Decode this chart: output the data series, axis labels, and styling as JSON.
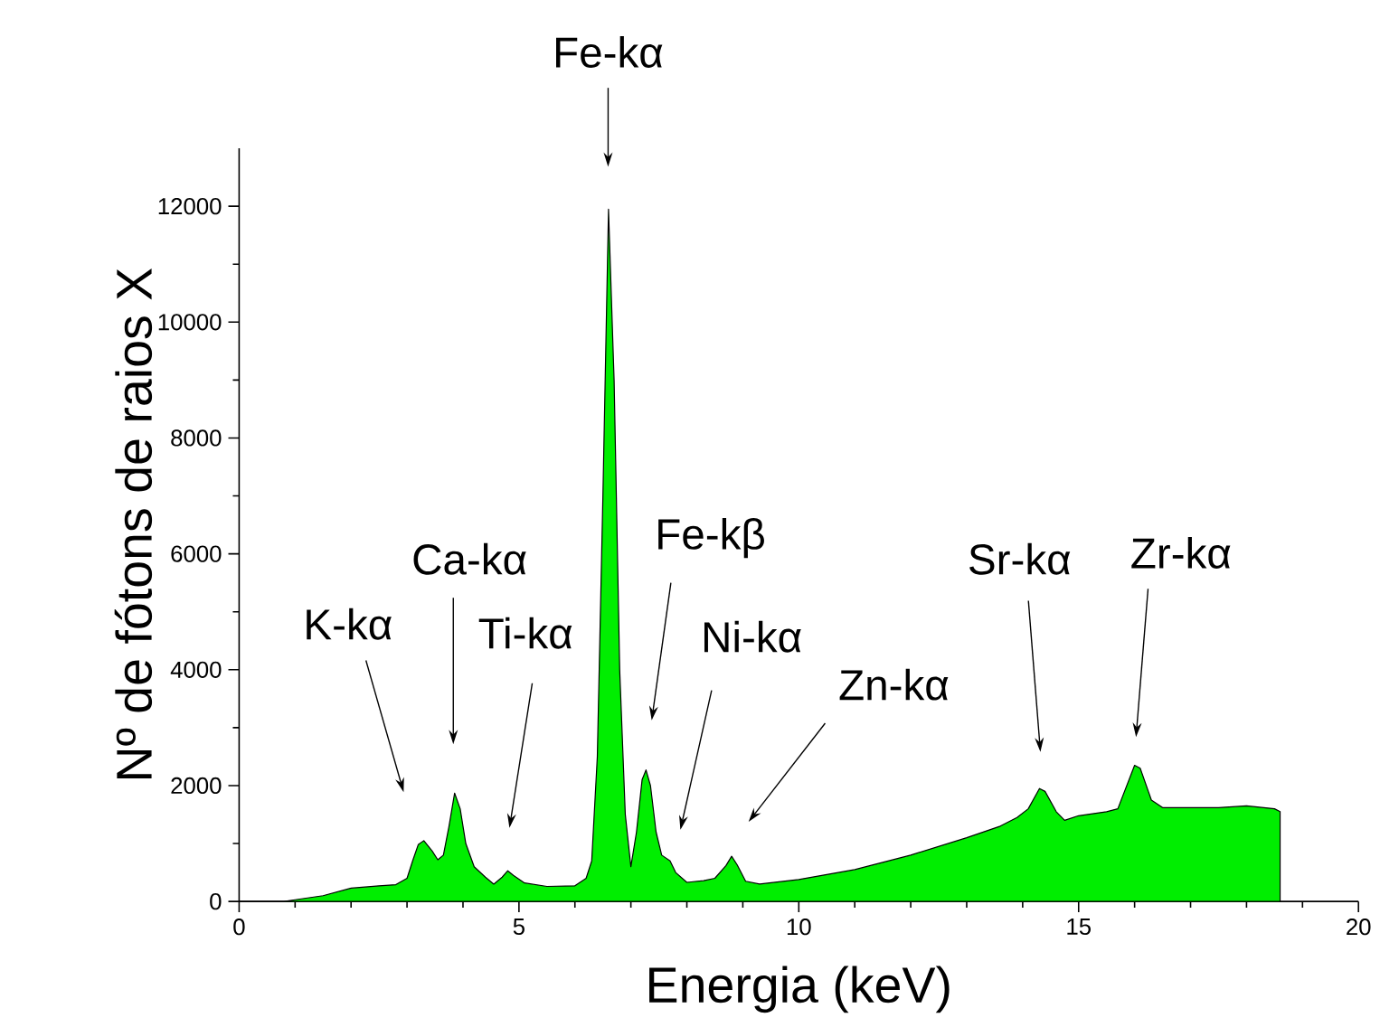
{
  "chart_data": {
    "type": "area",
    "xlabel": "Energia (keV)",
    "ylabel": "Nº de fótons de raios X",
    "xlim": [
      0,
      20
    ],
    "xticks": [
      0,
      5,
      10,
      15,
      20
    ],
    "ylim": [
      0,
      13000
    ],
    "yticks": [
      0,
      2000,
      4000,
      6000,
      8000,
      10000,
      12000
    ],
    "grid": false,
    "series": [
      {
        "color": "#00ee00",
        "x": [
          0,
          0.8,
          1.0,
          1.5,
          2.0,
          2.5,
          2.8,
          3.0,
          3.1,
          3.2,
          3.3,
          3.45,
          3.55,
          3.65,
          3.75,
          3.85,
          3.95,
          4.05,
          4.2,
          4.4,
          4.55,
          4.7,
          4.8,
          4.9,
          5.1,
          5.5,
          6.0,
          6.2,
          6.3,
          6.4,
          6.5,
          6.6,
          6.7,
          6.8,
          6.9,
          7.0,
          7.1,
          7.2,
          7.27,
          7.35,
          7.45,
          7.55,
          7.7,
          7.8,
          8.0,
          8.3,
          8.5,
          8.7,
          8.8,
          8.9,
          9.05,
          9.3,
          10,
          11,
          12,
          13,
          13.6,
          13.9,
          14.1,
          14.3,
          14.4,
          14.6,
          14.75,
          15,
          15.5,
          15.7,
          15.9,
          16.0,
          16.1,
          16.3,
          16.5,
          17,
          17.5,
          18,
          18.5,
          18.6
        ],
        "values": [
          0,
          0,
          30,
          100,
          230,
          270,
          290,
          400,
          700,
          980,
          1050,
          870,
          720,
          800,
          1300,
          1870,
          1600,
          1000,
          600,
          420,
          300,
          420,
          530,
          450,
          320,
          260,
          270,
          400,
          700,
          2500,
          7000,
          11950,
          9000,
          4000,
          1500,
          600,
          1200,
          2100,
          2270,
          2000,
          1200,
          800,
          700,
          500,
          330,
          360,
          400,
          620,
          780,
          630,
          350,
          300,
          380,
          550,
          800,
          1100,
          1300,
          1450,
          1600,
          1950,
          1900,
          1550,
          1400,
          1480,
          1550,
          1600,
          2100,
          2350,
          2300,
          1750,
          1620,
          1620,
          1620,
          1650,
          1600,
          1550
        ]
      }
    ],
    "annotations": [
      "Fe-kα",
      "K-kα",
      "Ca-kα",
      "Ti-kα",
      "Fe-kβ",
      "Ni-kα",
      "Zn-kα",
      "Sr-kα",
      "Zr-kα"
    ]
  }
}
